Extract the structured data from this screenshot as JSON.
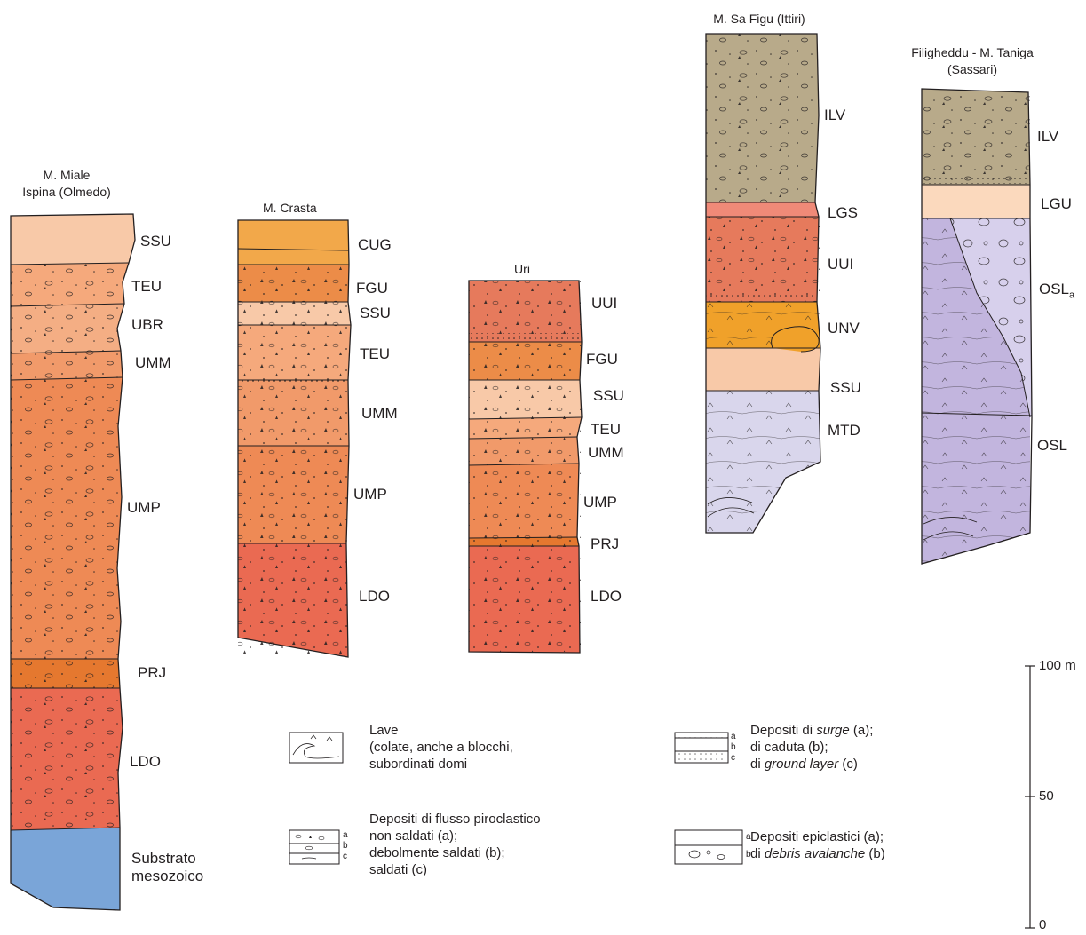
{
  "colors": {
    "SSU": "#f8c9a8",
    "TEU": "#f5a97c",
    "UBR": "#f4ae84",
    "UMM": "#f19a6a",
    "UMP": "#ee8a55",
    "PRJ": "#e5782f",
    "LDO": "#ea6a52",
    "Substrato": "#7aa5d8",
    "CUG": "#f2a84a",
    "FGU": "#ec8c48",
    "UUI": "#e67a5c",
    "ILV": "#b8aa8a",
    "LGS": "#f08a78",
    "LGU": "#fbd9bd",
    "UNV": "#f0a12a",
    "MTD": "#d9d6ec",
    "OSL": "#c2b5de",
    "OSLa": "#d7d0ec",
    "outline": "#231f20"
  },
  "columns": [
    {
      "name": "m-miale",
      "title_lines": [
        "M. Miale",
        "Ispina (Olmedo)"
      ],
      "units": [
        {
          "code": "SSU",
          "label": "SSU"
        },
        {
          "code": "TEU",
          "label": "TEU"
        },
        {
          "code": "UBR",
          "label": "UBR"
        },
        {
          "code": "UMM",
          "label": "UMM"
        },
        {
          "code": "UMP",
          "label": "UMP"
        },
        {
          "code": "PRJ",
          "label": "PRJ"
        },
        {
          "code": "LDO",
          "label": "LDO"
        },
        {
          "code": "Substrato",
          "label_lines": [
            "Substrato",
            "mesozoico"
          ]
        }
      ]
    },
    {
      "name": "m-crasta",
      "title_lines": [
        "M. Crasta"
      ],
      "units": [
        {
          "code": "CUG",
          "label": "CUG"
        },
        {
          "code": "FGU",
          "label": "FGU"
        },
        {
          "code": "SSU",
          "label": "SSU"
        },
        {
          "code": "TEU",
          "label": "TEU"
        },
        {
          "code": "UMM",
          "label": "UMM"
        },
        {
          "code": "UMP",
          "label": "UMP"
        },
        {
          "code": "LDO",
          "label": "LDO"
        }
      ]
    },
    {
      "name": "uri",
      "title_lines": [
        "Uri"
      ],
      "units": [
        {
          "code": "UUI",
          "label": "UUI"
        },
        {
          "code": "FGU",
          "label": "FGU"
        },
        {
          "code": "SSU",
          "label": "SSU"
        },
        {
          "code": "TEU",
          "label": "TEU"
        },
        {
          "code": "UMM",
          "label": "UMM"
        },
        {
          "code": "UMP",
          "label": "UMP"
        },
        {
          "code": "PRJ",
          "label": "PRJ"
        },
        {
          "code": "LDO",
          "label": "LDO"
        }
      ]
    },
    {
      "name": "m-sa-figu",
      "title_lines": [
        "M. Sa Figu (Ittiri)"
      ],
      "units": [
        {
          "code": "ILV",
          "label": "ILV"
        },
        {
          "code": "LGS",
          "label": "LGS"
        },
        {
          "code": "UUI",
          "label": "UUI"
        },
        {
          "code": "UNV",
          "label": "UNV"
        },
        {
          "code": "SSU",
          "label": "SSU"
        },
        {
          "code": "MTD",
          "label": "MTD"
        }
      ]
    },
    {
      "name": "filigheddu",
      "title_lines": [
        "Filigheddu - M. Taniga",
        "(Sassari)"
      ],
      "units": [
        {
          "code": "ILV",
          "label": "ILV"
        },
        {
          "code": "LGU",
          "label": "LGU"
        },
        {
          "code": "OSLa",
          "label": "OSL",
          "label_sub": "a"
        },
        {
          "code": "OSL",
          "label": "OSL"
        }
      ]
    }
  ],
  "legend": [
    {
      "name": "lave",
      "lines": [
        "Lave",
        "(colate, anche a blocchi,",
        "subordinati domi"
      ]
    },
    {
      "name": "flusso",
      "lines": [
        "Depositi di flusso piroclastico",
        "non saldati (a);",
        "debolmente saldati (b);",
        "saldati (c)"
      ],
      "swatch_letters": [
        "a",
        "b",
        "c"
      ]
    },
    {
      "name": "surge",
      "line1_pre": "Depositi di ",
      "line1_em": "surge",
      "line1_post": " (a);",
      "line2": "di caduta (b);",
      "line3_pre": "di ",
      "line3_em": "ground layer",
      "line3_post": " (c)",
      "swatch_letters": [
        "a",
        "b",
        "c"
      ]
    },
    {
      "name": "epiclastici",
      "line1": "Depositi epiclastici (a);",
      "line2_pre": "di ",
      "line2_em": "debris avalanche",
      "line2_post": " (b)",
      "swatch_letters": [
        "a",
        "b"
      ]
    }
  ],
  "scale": {
    "labels": [
      "100 m",
      "50",
      "0"
    ],
    "unit": "m",
    "max": 100
  }
}
